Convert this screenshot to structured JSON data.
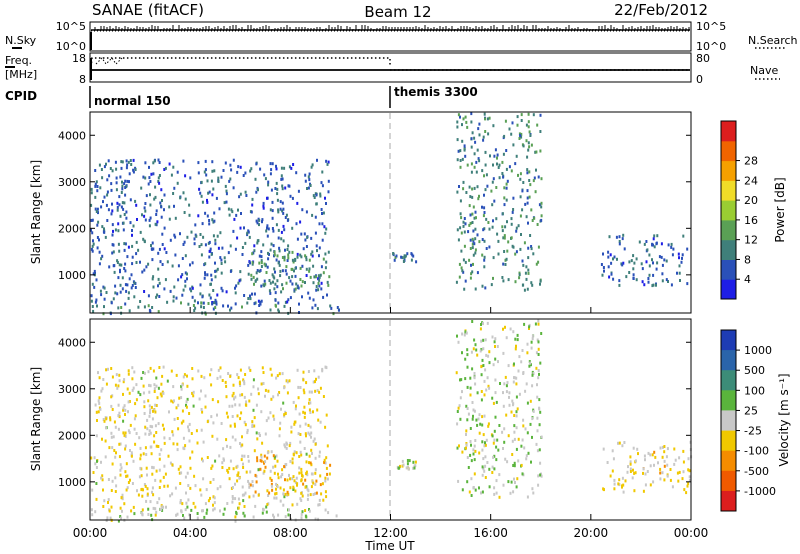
{
  "header": {
    "station": "SANAE (fitACF)",
    "beam": "Beam 12",
    "date": "22/Feb/2012"
  },
  "strip_labels": {
    "nsky": "N.Sky",
    "nsearch": "N.Search",
    "freq_line1": "Freq.",
    "freq_line2": "[MHz]",
    "nave": "Nave",
    "cpid": "CPID"
  },
  "strip_ticks": {
    "sky_top": "10^5",
    "sky_bottom": "10^0",
    "search_top": "10^5",
    "search_bottom": "10^0",
    "freq_top": "18",
    "freq_bottom": "8",
    "nave_top": "80",
    "nave_bottom": "0"
  },
  "cpid_modes": [
    {
      "label": "normal 150",
      "start_hour": 0
    },
    {
      "label": "themis 3300",
      "start_hour": 12
    }
  ],
  "axes": {
    "xlabel": "Time UT",
    "ylabel": "Slant Range [km]",
    "x_ticks": [
      "00:00",
      "04:00",
      "08:00",
      "12:00",
      "16:00",
      "20:00",
      "00:00"
    ],
    "y_ticks": [
      "1000",
      "2000",
      "3000",
      "4000"
    ],
    "xlim_hours": [
      0,
      24
    ],
    "ylim_km": [
      180,
      4500
    ],
    "y_tick_values": [
      1000,
      2000,
      3000,
      4000
    ],
    "mode_change_hour": 12
  },
  "colorbars": {
    "power": {
      "label": "Power [dB]",
      "ticks": [
        "4",
        "8",
        "12",
        "16",
        "20",
        "24",
        "28"
      ],
      "colors": [
        "#1e1ee6",
        "#2a50b8",
        "#3f7f7a",
        "#5aa055",
        "#9acd32",
        "#f0dc28",
        "#f5a000",
        "#f06400",
        "#dc1e1e"
      ]
    },
    "velocity": {
      "label": "Velocity [m s⁻¹]",
      "ticks": [
        "1000",
        "500",
        "100",
        "25",
        "-25",
        "-100",
        "-500",
        "-1000"
      ],
      "colors": [
        "#1e3cb4",
        "#2a64aa",
        "#3c8c78",
        "#5ab43c",
        "#c8c8c8",
        "#f0c800",
        "#f58c00",
        "#f05a00",
        "#dc1e1e"
      ]
    }
  },
  "chart_data": [
    {
      "type": "heatmap",
      "quantity": "Power",
      "xlabel": "Time UT",
      "ylabel": "Slant Range [km]",
      "units": "dB",
      "xlim_hours": [
        0,
        24
      ],
      "ylim_km": [
        180,
        4500
      ],
      "colorbar_ticks": [
        4,
        8,
        12,
        16,
        20,
        24,
        28
      ],
      "echo_regions": [
        {
          "hours": [
            0.0,
            10.0
          ],
          "km": [
            180,
            450
          ],
          "value_db": 10
        },
        {
          "hours": [
            0.0,
            9.5
          ],
          "km": [
            400,
            3500
          ],
          "value_db": 8
        },
        {
          "hours": [
            6.3,
            9.6
          ],
          "km": [
            700,
            1600
          ],
          "value_db": 11
        },
        {
          "hours": [
            12.0,
            13.0
          ],
          "km": [
            1300,
            1500
          ],
          "value_db": 9
        },
        {
          "hours": [
            14.6,
            18.0
          ],
          "km": [
            700,
            4500
          ],
          "value_db": 10
        },
        {
          "hours": [
            20.4,
            24.0
          ],
          "km": [
            800,
            1900
          ],
          "value_db": 8
        }
      ]
    },
    {
      "type": "heatmap",
      "quantity": "Velocity",
      "xlabel": "Time UT",
      "ylabel": "Slant Range [km]",
      "units": "m s⁻¹",
      "xlim_hours": [
        0,
        24
      ],
      "ylim_km": [
        180,
        4500
      ],
      "colorbar_ticks": [
        1000,
        500,
        100,
        25,
        -25,
        -100,
        -500,
        -1000
      ],
      "echo_regions": [
        {
          "hours": [
            0.0,
            10.0
          ],
          "km": [
            180,
            450
          ],
          "value_ms": 100
        },
        {
          "hours": [
            0.0,
            9.5
          ],
          "km": [
            400,
            3500
          ],
          "value_ms": -100
        },
        {
          "hours": [
            6.3,
            9.6
          ],
          "km": [
            700,
            1600
          ],
          "value_ms": -300
        },
        {
          "hours": [
            12.0,
            13.0
          ],
          "km": [
            1300,
            1500
          ],
          "value_ms": 0
        },
        {
          "hours": [
            14.6,
            18.0
          ],
          "km": [
            700,
            4500
          ],
          "value_ms": 50
        },
        {
          "hours": [
            20.4,
            24.0
          ],
          "km": [
            800,
            1900
          ],
          "value_ms": -150
        }
      ]
    }
  ]
}
